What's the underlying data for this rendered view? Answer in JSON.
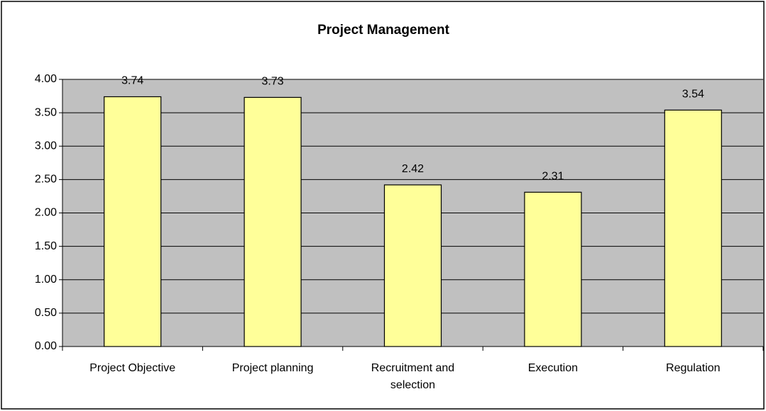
{
  "chart_data": {
    "type": "bar",
    "title": "Project Management",
    "categories": [
      "Project Objective",
      "Project planning",
      "Recruitment and selection",
      "Execution",
      "Regulation"
    ],
    "values": [
      3.74,
      3.73,
      2.42,
      2.31,
      3.54
    ],
    "color": "#ffff99",
    "ylim": [
      0,
      4
    ],
    "yticks": [
      {
        "value": 0,
        "label": "0.00"
      },
      {
        "value": 0.5,
        "label": "0.50"
      },
      {
        "value": 1,
        "label": "1.00"
      },
      {
        "value": 1.5,
        "label": "1.50"
      },
      {
        "value": 2,
        "label": "2.00"
      },
      {
        "value": 2.5,
        "label": "2.50"
      },
      {
        "value": 3,
        "label": "3.00"
      },
      {
        "value": 3.5,
        "label": "3.50"
      },
      {
        "value": 4,
        "label": "4.00"
      }
    ],
    "grid": true
  }
}
